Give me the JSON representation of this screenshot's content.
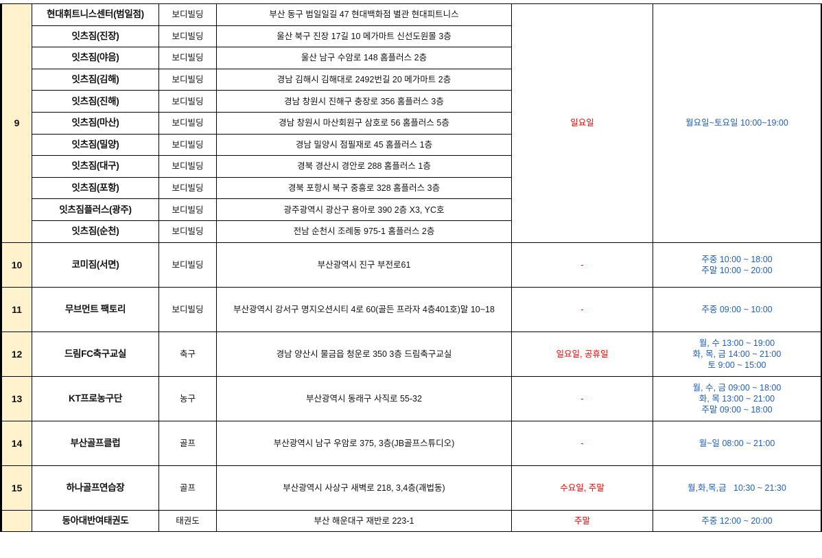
{
  "colors": {
    "number_bg": "#FFF2CC",
    "closed_text": "#FF0000",
    "hours_text": "#1F5FBF"
  },
  "group9": {
    "number": "9",
    "closed": "일요일",
    "hours": "월요일~토요일 10:00~19:00",
    "rows": [
      {
        "name": "현대휘트니스센터(범일점)",
        "category": "보디빌딩",
        "address": "부산 동구 범일일길 47 현대백화점 별관 현대피트니스"
      },
      {
        "name": "잇츠짐(진장)",
        "category": "보디빌딩",
        "address": "울산 북구 진장 17길 10 메가마트 신선도원몰 3층"
      },
      {
        "name": "잇츠짐(야음)",
        "category": "보디빌딩",
        "address": "울산 남구 수암로 148 홈플러스 2층"
      },
      {
        "name": "잇츠짐(김해)",
        "category": "보디빌딩",
        "address": "경남 김해시 김해대로 2492번길 20 메가마트 2층"
      },
      {
        "name": "잇츠짐(진해)",
        "category": "보디빌딩",
        "address": "경남 창원시 진해구 충장로 356 홈플러스 3층"
      },
      {
        "name": "잇츠짐(마산)",
        "category": "보디빌딩",
        "address": "경남 창원시 마산회원구 삼호로 56 홈플러스 5층"
      },
      {
        "name": "잇츠짐(밀양)",
        "category": "보디빌딩",
        "address": "경남 밀양시 점필재로 45 홈플러스 1층"
      },
      {
        "name": "잇츠짐(대구)",
        "category": "보디빌딩",
        "address": "경북 경산시 경안로 288 홈플러스 1층"
      },
      {
        "name": "잇츠짐(포항)",
        "category": "보디빌딩",
        "address": "경북 포항시 북구 중흥로 328 홈플러스 3층"
      },
      {
        "name": "잇츠짐플러스(광주)",
        "category": "보디빌딩",
        "address": "광주광역시 광산구 용아로 390 2층 X3, YC호"
      },
      {
        "name": "잇츠짐(순천)",
        "category": "보디빌딩",
        "address": "전남 순천시 조례동 975-1 홈플러스 2층"
      }
    ]
  },
  "rows": [
    {
      "number": "10",
      "name": "코미짐(서면)",
      "category": "보디빌딩",
      "address": "부산광역시 진구 부전로61",
      "closed": "-",
      "hours": [
        "주중 10:00 ~ 18:00",
        "주말 10:00 ~ 20:00"
      ]
    },
    {
      "number": "11",
      "name": "무브먼트 팩토리",
      "category": "보디빌딩",
      "address": "부산광역시 강서구 명지오션시티 4로 60(골든 프라자 4층401호)말 10~18",
      "closed": "-",
      "hours": [
        "주중 09:00 ~ 10:00"
      ]
    },
    {
      "number": "12",
      "name": "드림FC축구교실",
      "category": "축구",
      "address": "경남 양산시 물금읍 청운로 350 3층 드림축구교실",
      "closed": "일요일, 공휴일",
      "hours": [
        "월, 수 13:00 ~ 19:00",
        "화, 목, 금 14:00 ~ 21:00",
        "토 9:00 ~ 15:00"
      ]
    },
    {
      "number": "13",
      "name": "KT프로농구단",
      "category": "농구",
      "address": "부산광역시 동래구 사직로 55-32",
      "closed": "-",
      "hours": [
        "월, 수, 금 09:00 ~ 18:00",
        "화, 목 13:00 ~ 21:00",
        "주말 09:00 ~ 18:00"
      ]
    },
    {
      "number": "14",
      "name": "부산골프클럽",
      "category": "골프",
      "address": "부산광역시 남구 우암로 375, 3층(JB골프스튜디오)",
      "closed": "-",
      "hours": [
        "월~일 08:00 ~ 21:00"
      ]
    },
    {
      "number": "15",
      "name": "하나골프연습장",
      "category": "골프",
      "address": "부산광역시 사상구 새벽로 218, 3,4층(괘법동)",
      "closed": "수요일, 주말",
      "hours": [
        "월,화,목,금   10:30 ~ 21:30"
      ]
    }
  ],
  "last_row": {
    "number": "",
    "name": "동아대반여태권도",
    "category": "태권도",
    "address": "부산 해운대구 재반로 223-1",
    "closed": "주말",
    "hours": "주중 12:00 ~ 20:00"
  }
}
